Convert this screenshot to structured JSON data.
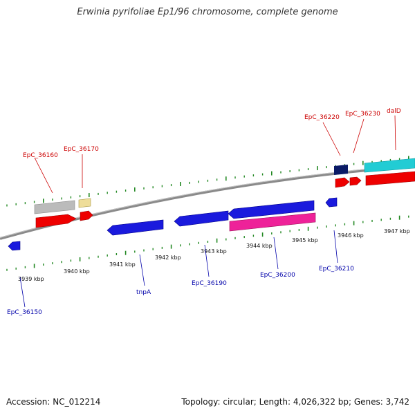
{
  "header": {
    "title": "Erwinia pyrifoliae Ep1/96 chromosome, complete genome"
  },
  "footer": {
    "accession": "Accession: NC_012214",
    "summary": "Topology: circular; Length: 4,026,322 bp; Genes: 3,742"
  },
  "colors": {
    "forward_label": "#cc0000",
    "reverse_label": "#0000aa",
    "tick": "#228822",
    "backbone": "#888888"
  },
  "scale": {
    "unit": "kbp",
    "labels": [
      "3939 kbp",
      "3940 kbp",
      "3941 kbp",
      "3942 kbp",
      "3943 kbp",
      "3944 kbp",
      "3945 kbp",
      "3946 kbp",
      "3947 kbp"
    ]
  },
  "genes": {
    "forward": [
      {
        "label": "EpC_36160"
      },
      {
        "label": "EpC_36170"
      },
      {
        "label": "EpC_36220"
      },
      {
        "label": "EpC_36230"
      },
      {
        "label": "dalD"
      }
    ],
    "reverse": [
      {
        "label": "EpC_36150"
      },
      {
        "label": "tnpA"
      },
      {
        "label": "EpC_36190"
      },
      {
        "label": "EpC_36200"
      },
      {
        "label": "EpC_36210"
      }
    ]
  }
}
